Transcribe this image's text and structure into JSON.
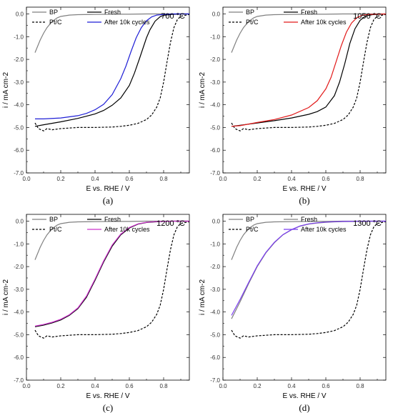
{
  "chart_data": [
    {
      "type": "line",
      "panel_label": "(a)",
      "temperature_label": "700 °C",
      "xlabel": "E vs. RHE / V",
      "ylabel": "i / mA cm-2",
      "xlim": [
        0.0,
        0.95
      ],
      "ylim": [
        -7.0,
        0.3
      ],
      "xticks": [
        0.0,
        0.2,
        0.4,
        0.6,
        0.8
      ],
      "xtick_labels": [
        "0.0",
        "0.2",
        "0.4",
        "0.6",
        "0.8"
      ],
      "yticks": [
        -7.0,
        -6.0,
        -5.0,
        -4.0,
        -3.0,
        -2.0,
        -1.0,
        0.0
      ],
      "ytick_labels": [
        "-7.0",
        "-6.0",
        "-5.0",
        "-4.0",
        "-3.0",
        "-2.0",
        "-1.0",
        "0.0"
      ],
      "legend_placement": "top",
      "series": [
        {
          "name": "BP",
          "color": "#808080",
          "dash": "solid",
          "x": [
            0.05,
            0.08,
            0.1,
            0.12,
            0.15,
            0.18,
            0.2,
            0.25,
            0.3,
            0.4,
            0.5,
            0.6,
            0.7,
            0.8,
            0.95
          ],
          "y": [
            -1.7,
            -1.15,
            -0.85,
            -0.6,
            -0.33,
            -0.17,
            -0.11,
            -0.05,
            -0.03,
            -0.02,
            -0.01,
            -0.01,
            0.0,
            0.0,
            0.0
          ]
        },
        {
          "name": "Pt/C",
          "color": "#000000",
          "dash": "dashed",
          "x": [
            0.05,
            0.07,
            0.1,
            0.12,
            0.15,
            0.2,
            0.3,
            0.4,
            0.5,
            0.55,
            0.6,
            0.65,
            0.7,
            0.73,
            0.76,
            0.78,
            0.8,
            0.82,
            0.84,
            0.86,
            0.88,
            0.9,
            0.95
          ],
          "y": [
            -4.8,
            -5.05,
            -5.15,
            -5.05,
            -5.1,
            -5.05,
            -5.0,
            -5.0,
            -4.98,
            -4.95,
            -4.9,
            -4.82,
            -4.65,
            -4.45,
            -4.1,
            -3.7,
            -3.0,
            -2.1,
            -1.25,
            -0.6,
            -0.25,
            -0.1,
            -0.02
          ]
        },
        {
          "name": "Fresh",
          "color": "#000000",
          "dash": "solid",
          "x": [
            0.05,
            0.1,
            0.2,
            0.3,
            0.4,
            0.45,
            0.5,
            0.55,
            0.6,
            0.63,
            0.66,
            0.7,
            0.72,
            0.75,
            0.78,
            0.8,
            0.85,
            0.9,
            0.95
          ],
          "y": [
            -4.95,
            -4.88,
            -4.75,
            -4.6,
            -4.4,
            -4.25,
            -4.02,
            -3.7,
            -3.15,
            -2.6,
            -1.95,
            -1.05,
            -0.7,
            -0.32,
            -0.12,
            -0.06,
            -0.02,
            0.0,
            0.0
          ]
        },
        {
          "name": "After 10k cycles",
          "color": "#1f1fd6",
          "dash": "solid",
          "x": [
            0.05,
            0.1,
            0.2,
            0.3,
            0.35,
            0.4,
            0.45,
            0.5,
            0.55,
            0.58,
            0.61,
            0.64,
            0.67,
            0.7,
            0.73,
            0.76,
            0.8,
            0.85,
            0.95
          ],
          "y": [
            -4.62,
            -4.62,
            -4.58,
            -4.48,
            -4.38,
            -4.22,
            -3.98,
            -3.55,
            -2.85,
            -2.3,
            -1.65,
            -1.05,
            -0.6,
            -0.3,
            -0.13,
            -0.05,
            -0.02,
            0.0,
            0.0
          ]
        }
      ]
    },
    {
      "type": "line",
      "panel_label": "(b)",
      "temperature_label": "1050 °C",
      "xlabel": "E vs. RHE / V",
      "ylabel": "i / mA cm-2",
      "xlim": [
        0.0,
        0.95
      ],
      "ylim": [
        -7.0,
        0.3
      ],
      "xticks": [
        0.0,
        0.2,
        0.4,
        0.6,
        0.8
      ],
      "xtick_labels": [
        "0.0",
        "0.2",
        "0.4",
        "0.6",
        "0.8"
      ],
      "yticks": [
        -7.0,
        -6.0,
        -5.0,
        -4.0,
        -3.0,
        -2.0,
        -1.0,
        0.0
      ],
      "ytick_labels": [
        "-7.0",
        "-6.0",
        "-5.0",
        "-4.0",
        "-3.0",
        "-2.0",
        "-1.0",
        "0.0"
      ],
      "legend_placement": "top",
      "series": [
        {
          "name": "BP",
          "color": "#808080",
          "dash": "solid",
          "x": [
            0.05,
            0.08,
            0.1,
            0.12,
            0.15,
            0.18,
            0.2,
            0.25,
            0.3,
            0.4,
            0.5,
            0.6,
            0.7,
            0.8,
            0.95
          ],
          "y": [
            -1.7,
            -1.15,
            -0.85,
            -0.6,
            -0.33,
            -0.17,
            -0.11,
            -0.05,
            -0.03,
            -0.02,
            -0.01,
            -0.01,
            0.0,
            0.0,
            0.0
          ]
        },
        {
          "name": "Pt/C",
          "color": "#000000",
          "dash": "dashed",
          "x": [
            0.05,
            0.07,
            0.1,
            0.12,
            0.15,
            0.2,
            0.3,
            0.4,
            0.5,
            0.55,
            0.6,
            0.65,
            0.7,
            0.73,
            0.76,
            0.78,
            0.8,
            0.82,
            0.84,
            0.86,
            0.88,
            0.9,
            0.95
          ],
          "y": [
            -4.8,
            -5.05,
            -5.15,
            -5.05,
            -5.1,
            -5.05,
            -5.0,
            -5.0,
            -4.98,
            -4.95,
            -4.9,
            -4.82,
            -4.65,
            -4.45,
            -4.1,
            -3.7,
            -3.0,
            -2.1,
            -1.25,
            -0.6,
            -0.25,
            -0.1,
            -0.02
          ]
        },
        {
          "name": "Fresh",
          "color": "#000000",
          "dash": "solid",
          "x": [
            0.05,
            0.1,
            0.2,
            0.3,
            0.4,
            0.5,
            0.55,
            0.6,
            0.65,
            0.68,
            0.71,
            0.74,
            0.77,
            0.8,
            0.83,
            0.87,
            0.95
          ],
          "y": [
            -4.95,
            -4.9,
            -4.8,
            -4.7,
            -4.58,
            -4.42,
            -4.3,
            -4.1,
            -3.6,
            -3.0,
            -2.2,
            -1.3,
            -0.65,
            -0.28,
            -0.1,
            -0.03,
            0.0
          ]
        },
        {
          "name": "After 10k cycles",
          "color": "#e21a1a",
          "dash": "solid",
          "x": [
            0.05,
            0.1,
            0.2,
            0.3,
            0.4,
            0.5,
            0.55,
            0.6,
            0.63,
            0.66,
            0.69,
            0.72,
            0.75,
            0.78,
            0.81,
            0.85,
            0.95
          ],
          "y": [
            -4.95,
            -4.92,
            -4.78,
            -4.65,
            -4.45,
            -4.12,
            -3.82,
            -3.3,
            -2.8,
            -2.1,
            -1.4,
            -0.8,
            -0.4,
            -0.17,
            -0.06,
            -0.02,
            0.0
          ]
        }
      ]
    },
    {
      "type": "line",
      "panel_label": "(c)",
      "temperature_label": "1200 °C",
      "xlabel": "E vs. RHE / V",
      "ylabel": "i / mA cm-2",
      "xlim": [
        0.0,
        0.95
      ],
      "ylim": [
        -7.0,
        0.3
      ],
      "xticks": [
        0.0,
        0.2,
        0.4,
        0.6,
        0.8
      ],
      "xtick_labels": [
        "0.0",
        "0.2",
        "0.4",
        "0.6",
        "0.8"
      ],
      "yticks": [
        -7.0,
        -6.0,
        -5.0,
        -4.0,
        -3.0,
        -2.0,
        -1.0,
        0.0
      ],
      "ytick_labels": [
        "-7.0",
        "-6.0",
        "-5.0",
        "-4.0",
        "-3.0",
        "-2.0",
        "-1.0",
        "0.0"
      ],
      "legend_placement": "top",
      "series": [
        {
          "name": "BP",
          "color": "#808080",
          "dash": "solid",
          "x": [
            0.05,
            0.08,
            0.1,
            0.12,
            0.15,
            0.18,
            0.2,
            0.25,
            0.3,
            0.4,
            0.5,
            0.6,
            0.7,
            0.8,
            0.95
          ],
          "y": [
            -1.7,
            -1.15,
            -0.85,
            -0.6,
            -0.33,
            -0.17,
            -0.11,
            -0.05,
            -0.03,
            -0.02,
            -0.01,
            -0.01,
            0.0,
            0.0,
            0.0
          ]
        },
        {
          "name": "Pt/C",
          "color": "#000000",
          "dash": "dashed",
          "x": [
            0.05,
            0.07,
            0.1,
            0.12,
            0.15,
            0.2,
            0.3,
            0.4,
            0.5,
            0.55,
            0.6,
            0.65,
            0.7,
            0.73,
            0.76,
            0.78,
            0.8,
            0.82,
            0.84,
            0.86,
            0.88,
            0.9,
            0.95
          ],
          "y": [
            -4.8,
            -5.05,
            -5.15,
            -5.05,
            -5.1,
            -5.05,
            -5.0,
            -5.0,
            -4.98,
            -4.95,
            -4.9,
            -4.82,
            -4.65,
            -4.45,
            -4.1,
            -3.7,
            -3.0,
            -2.1,
            -1.25,
            -0.6,
            -0.25,
            -0.1,
            -0.02
          ]
        },
        {
          "name": "Fresh",
          "color": "#000000",
          "dash": "solid",
          "x": [
            0.05,
            0.1,
            0.15,
            0.2,
            0.25,
            0.3,
            0.35,
            0.4,
            0.45,
            0.5,
            0.55,
            0.6,
            0.65,
            0.7,
            0.75,
            0.8,
            0.85,
            0.95
          ],
          "y": [
            -4.65,
            -4.58,
            -4.48,
            -4.35,
            -4.15,
            -3.85,
            -3.35,
            -2.6,
            -1.8,
            -1.1,
            -0.6,
            -0.3,
            -0.13,
            -0.06,
            -0.03,
            -0.01,
            0.0,
            0.0
          ]
        },
        {
          "name": "After 10k cycles",
          "color": "#cc33cc",
          "dash": "solid",
          "x": [
            0.05,
            0.1,
            0.15,
            0.2,
            0.25,
            0.3,
            0.35,
            0.4,
            0.45,
            0.5,
            0.55,
            0.6,
            0.65,
            0.7,
            0.75,
            0.8,
            0.85,
            0.95
          ],
          "y": [
            -4.62,
            -4.55,
            -4.45,
            -4.32,
            -4.12,
            -3.82,
            -3.3,
            -2.55,
            -1.75,
            -1.05,
            -0.57,
            -0.28,
            -0.12,
            -0.05,
            -0.02,
            -0.01,
            0.0,
            0.0
          ]
        }
      ]
    },
    {
      "type": "line",
      "panel_label": "(d)",
      "temperature_label": "1300 °C",
      "xlabel": "E vs. RHE / V",
      "ylabel": "i / mA cm-2",
      "xlim": [
        0.0,
        0.95
      ],
      "ylim": [
        -7.0,
        0.3
      ],
      "xticks": [
        0.0,
        0.2,
        0.4,
        0.6,
        0.8
      ],
      "xtick_labels": [
        "0.0",
        "0.2",
        "0.4",
        "0.6",
        "0.8"
      ],
      "yticks": [
        -7.0,
        -6.0,
        -5.0,
        -4.0,
        -3.0,
        -2.0,
        -1.0,
        0.0
      ],
      "ytick_labels": [
        "-7.0",
        "-6.0",
        "-5.0",
        "-4.0",
        "-3.0",
        "-2.0",
        "-1.0",
        "0.0"
      ],
      "legend_placement": "top",
      "series": [
        {
          "name": "BP",
          "color": "#808080",
          "dash": "solid",
          "x": [
            0.05,
            0.08,
            0.1,
            0.12,
            0.15,
            0.18,
            0.2,
            0.25,
            0.3,
            0.4,
            0.5,
            0.6,
            0.7,
            0.8,
            0.95
          ],
          "y": [
            -1.7,
            -1.15,
            -0.85,
            -0.6,
            -0.33,
            -0.17,
            -0.11,
            -0.05,
            -0.03,
            -0.02,
            -0.01,
            -0.01,
            0.0,
            0.0,
            0.0
          ]
        },
        {
          "name": "Pt/C",
          "color": "#000000",
          "dash": "dashed",
          "x": [
            0.05,
            0.07,
            0.1,
            0.12,
            0.15,
            0.2,
            0.3,
            0.4,
            0.5,
            0.55,
            0.6,
            0.65,
            0.7,
            0.73,
            0.76,
            0.78,
            0.8,
            0.82,
            0.84,
            0.86,
            0.88,
            0.9,
            0.95
          ],
          "y": [
            -4.8,
            -5.05,
            -5.15,
            -5.05,
            -5.1,
            -5.05,
            -5.0,
            -5.0,
            -4.98,
            -4.95,
            -4.9,
            -4.82,
            -4.65,
            -4.45,
            -4.1,
            -3.7,
            -3.0,
            -2.1,
            -1.25,
            -0.6,
            -0.25,
            -0.1,
            -0.02
          ]
        },
        {
          "name": "Fresh",
          "color": "#808080",
          "dash": "solid",
          "x": [
            0.05,
            0.1,
            0.15,
            0.2,
            0.25,
            0.3,
            0.35,
            0.4,
            0.45,
            0.5,
            0.55,
            0.6,
            0.65,
            0.7,
            0.8,
            0.95
          ],
          "y": [
            -4.3,
            -3.55,
            -2.75,
            -2.0,
            -1.4,
            -0.95,
            -0.6,
            -0.38,
            -0.22,
            -0.13,
            -0.08,
            -0.05,
            -0.03,
            -0.02,
            -0.01,
            0.0
          ]
        },
        {
          "name": "After 10k cycles",
          "color": "#7a3cf0",
          "dash": "solid",
          "x": [
            0.05,
            0.1,
            0.15,
            0.2,
            0.25,
            0.3,
            0.35,
            0.4,
            0.45,
            0.5,
            0.55,
            0.6,
            0.65,
            0.7,
            0.8,
            0.95
          ],
          "y": [
            -4.15,
            -3.45,
            -2.7,
            -1.97,
            -1.38,
            -0.93,
            -0.59,
            -0.37,
            -0.21,
            -0.12,
            -0.07,
            -0.04,
            -0.02,
            -0.01,
            0.0,
            0.0
          ]
        }
      ]
    }
  ]
}
